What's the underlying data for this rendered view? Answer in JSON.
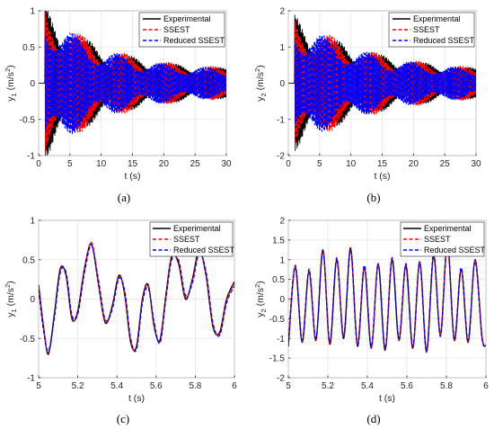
{
  "chart_data": [
    {
      "panel_label": "(a)",
      "type": "line",
      "xlabel": "t (s)",
      "ylabel": "y_1 (m/s^2)",
      "ylabel_main": "y",
      "ylabel_sub": "1",
      "ylabel_unit": "(m/s",
      "ylabel_sup": "2",
      "ylabel_close": ")",
      "xlim": [
        0,
        30
      ],
      "ylim": [
        -1,
        1
      ],
      "xticks": [
        0,
        5,
        10,
        15,
        20,
        25,
        30
      ],
      "yticks": [
        -1,
        -0.5,
        0,
        0.5,
        1
      ],
      "xtick_labels": [
        "0",
        "5",
        "10",
        "15",
        "20",
        "25",
        "30"
      ],
      "ytick_labels": [
        "-1",
        "-0.5",
        "0",
        "0.5",
        "1"
      ],
      "grid": true,
      "legend_position": "top-right",
      "signal": {
        "start": 1.0,
        "amplitude": 0.9,
        "decay": 0.11,
        "floor": 0.18,
        "frequency": 6.8
      },
      "series": [
        {
          "name": "Experimental",
          "color": "#000000",
          "style": "solid"
        },
        {
          "name": "SSEST",
          "color": "#ff0000",
          "style": "dashed"
        },
        {
          "name": "Reduced SSEST",
          "color": "#0000ff",
          "style": "dashed"
        }
      ]
    },
    {
      "panel_label": "(b)",
      "type": "line",
      "xlabel": "t (s)",
      "ylabel": "y_2 (m/s^2)",
      "ylabel_main": "y",
      "ylabel_sub": "2",
      "ylabel_unit": "(m/s",
      "ylabel_sup": "2",
      "ylabel_close": ")",
      "xlim": [
        0,
        30
      ],
      "ylim": [
        -2,
        2
      ],
      "xticks": [
        0,
        5,
        10,
        15,
        20,
        25,
        30
      ],
      "yticks": [
        -2,
        -1,
        0,
        1,
        2
      ],
      "xtick_labels": [
        "0",
        "5",
        "10",
        "15",
        "20",
        "25",
        "30"
      ],
      "ytick_labels": [
        "-2",
        "-1",
        "0",
        "1",
        "2"
      ],
      "grid": true,
      "legend_position": "top-right",
      "signal": {
        "start": 1.0,
        "amplitude": 1.6,
        "decay": 0.085,
        "floor": 0.3,
        "frequency": 6.8
      },
      "series": [
        {
          "name": "Experimental",
          "color": "#000000",
          "style": "solid"
        },
        {
          "name": "SSEST",
          "color": "#ff0000",
          "style": "dashed"
        },
        {
          "name": "Reduced SSEST",
          "color": "#0000ff",
          "style": "dashed"
        }
      ]
    },
    {
      "panel_label": "(c)",
      "type": "line",
      "xlabel": "t (s)",
      "ylabel": "y_1 (m/s^2)",
      "ylabel_main": "y",
      "ylabel_sub": "1",
      "ylabel_unit": "(m/s",
      "ylabel_sup": "2",
      "ylabel_close": ")",
      "xlim": [
        5,
        6
      ],
      "ylim": [
        -1,
        1
      ],
      "xticks": [
        5,
        5.2,
        5.4,
        5.6,
        5.8,
        6
      ],
      "yticks": [
        -1,
        -0.5,
        0,
        0.5,
        1
      ],
      "xtick_labels": [
        "5",
        "5.2",
        "5.4",
        "5.6",
        "5.8",
        "6"
      ],
      "ytick_labels": [
        "-1",
        "-0.5",
        "0",
        "0.5",
        "1"
      ],
      "grid": true,
      "legend_position": "top-right",
      "x": [
        5.0,
        5.025,
        5.05,
        5.08,
        5.11,
        5.14,
        5.17,
        5.2,
        5.235,
        5.27,
        5.305,
        5.34,
        5.375,
        5.41,
        5.44,
        5.47,
        5.5,
        5.53,
        5.56,
        5.59,
        5.62,
        5.65,
        5.68,
        5.715,
        5.75,
        5.785,
        5.82,
        5.855,
        5.89,
        5.925,
        5.96,
        6.0
      ],
      "series": [
        {
          "name": "Experimental",
          "color": "#000000",
          "style": "solid",
          "values": [
            0.18,
            -0.35,
            -0.7,
            -0.2,
            0.38,
            0.3,
            -0.25,
            -0.15,
            0.4,
            0.7,
            0.2,
            -0.3,
            -0.1,
            0.3,
            0.05,
            -0.55,
            -0.6,
            0.0,
            0.18,
            -0.35,
            -0.52,
            0.05,
            0.55,
            0.45,
            0.0,
            0.25,
            0.62,
            0.3,
            -0.35,
            -0.42,
            0.0,
            0.22
          ]
        },
        {
          "name": "SSEST",
          "color": "#ff0000",
          "style": "dashed",
          "values": [
            0.16,
            -0.37,
            -0.68,
            -0.22,
            0.36,
            0.32,
            -0.23,
            -0.17,
            0.38,
            0.72,
            0.22,
            -0.28,
            -0.12,
            0.28,
            0.07,
            -0.53,
            -0.62,
            -0.02,
            0.16,
            -0.33,
            -0.54,
            0.03,
            0.53,
            0.47,
            0.02,
            0.23,
            0.6,
            0.32,
            -0.33,
            -0.44,
            -0.02,
            0.2
          ]
        },
        {
          "name": "Reduced SSEST",
          "color": "#0000ff",
          "style": "dashed",
          "values": [
            0.12,
            -0.4,
            -0.66,
            -0.25,
            0.33,
            0.34,
            -0.2,
            -0.19,
            0.35,
            0.68,
            0.25,
            -0.26,
            -0.14,
            0.26,
            0.1,
            -0.5,
            -0.64,
            -0.05,
            0.14,
            -0.3,
            -0.56,
            0.0,
            0.5,
            0.49,
            0.05,
            0.2,
            0.58,
            0.35,
            -0.3,
            -0.46,
            -0.05,
            0.17
          ]
        }
      ]
    },
    {
      "panel_label": "(d)",
      "type": "line",
      "xlabel": "t (s)",
      "ylabel": "y_2 (m/s^2)",
      "ylabel_main": "y",
      "ylabel_sub": "2",
      "ylabel_unit": "(m/s",
      "ylabel_sup": "2",
      "ylabel_close": ")",
      "xlim": [
        5,
        6
      ],
      "ylim": [
        -2,
        2
      ],
      "xticks": [
        5,
        5.2,
        5.4,
        5.6,
        5.8,
        6
      ],
      "yticks": [
        -2,
        -1.5,
        -1,
        -0.5,
        0,
        0.5,
        1,
        1.5,
        2
      ],
      "xtick_labels": [
        "5",
        "5.2",
        "5.4",
        "5.6",
        "5.8",
        "6"
      ],
      "ytick_labels": [
        "-2",
        "-1.5",
        "-1",
        "-0.5",
        "0",
        "0.5",
        "1",
        "1.5",
        "2"
      ],
      "grid": true,
      "legend_position": "top-right",
      "x": [
        5.0,
        5.035,
        5.07,
        5.105,
        5.14,
        5.175,
        5.21,
        5.245,
        5.28,
        5.315,
        5.35,
        5.385,
        5.42,
        5.455,
        5.49,
        5.525,
        5.56,
        5.595,
        5.63,
        5.665,
        5.7,
        5.735,
        5.77,
        5.805,
        5.84,
        5.875,
        5.91,
        5.945,
        5.98,
        6.0
      ],
      "series": [
        {
          "name": "Experimental",
          "color": "#000000",
          "style": "solid",
          "values": [
            -1.2,
            0.8,
            -1.1,
            0.7,
            -1.05,
            1.25,
            -1.15,
            1.0,
            -1.0,
            1.3,
            -1.2,
            0.8,
            -1.25,
            0.9,
            -1.3,
            1.0,
            -1.05,
            0.85,
            -1.25,
            0.95,
            -1.35,
            1.1,
            -0.9,
            1.45,
            -1.05,
            0.75,
            -1.1,
            1.0,
            -0.95,
            -1.2
          ]
        },
        {
          "name": "SSEST",
          "color": "#ff0000",
          "style": "dashed",
          "values": [
            -1.15,
            0.82,
            -1.08,
            0.72,
            -1.03,
            1.23,
            -1.13,
            1.02,
            -0.98,
            1.28,
            -1.18,
            0.82,
            -1.23,
            0.88,
            -1.28,
            1.02,
            -1.03,
            0.87,
            -1.23,
            0.93,
            -1.33,
            1.12,
            -0.92,
            1.43,
            -1.03,
            0.77,
            -1.08,
            0.98,
            -0.97,
            -1.18
          ]
        },
        {
          "name": "Reduced SSEST",
          "color": "#0000ff",
          "style": "dashed",
          "values": [
            -1.1,
            0.86,
            -1.05,
            0.76,
            -1.0,
            1.2,
            -1.1,
            1.05,
            -0.95,
            1.25,
            -1.15,
            0.86,
            -1.2,
            0.85,
            -1.25,
            1.05,
            -1.0,
            0.9,
            -1.2,
            0.9,
            -1.3,
            1.15,
            -0.95,
            1.4,
            -1.0,
            0.8,
            -1.05,
            0.95,
            -1.0,
            -1.15
          ]
        }
      ]
    }
  ]
}
